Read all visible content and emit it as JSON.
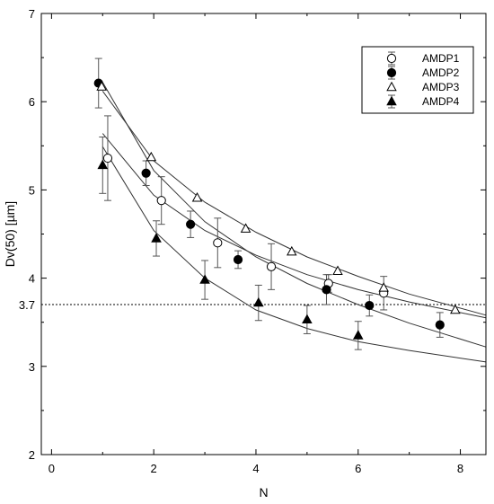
{
  "chart_data": {
    "type": "scatter",
    "title": "",
    "xlabel": "N",
    "ylabel": "Dv(50) [µm]",
    "xlim": [
      -0.2,
      8.5
    ],
    "ylim": [
      2,
      7
    ],
    "x_ticks": [
      "0",
      "2",
      "4",
      "6",
      "8"
    ],
    "y_ticks": [
      "2",
      "3",
      "4",
      "5",
      "6",
      "7"
    ],
    "grid": false,
    "legend_position": "top-right",
    "reference_line": {
      "y": 3.7,
      "label": "3.7",
      "style": "dotted"
    },
    "series": [
      {
        "name": "AMDP1",
        "marker": "open-circle",
        "points": [
          {
            "x": 1.1,
            "y": 5.36,
            "err": 0.48
          },
          {
            "x": 2.15,
            "y": 4.88,
            "err": 0.27
          },
          {
            "x": 3.25,
            "y": 4.4,
            "err": 0.28
          },
          {
            "x": 4.3,
            "y": 4.13,
            "err": 0.26
          },
          {
            "x": 5.42,
            "y": 3.94,
            "err": 0.1
          },
          {
            "x": 6.5,
            "y": 3.83,
            "err": 0.19
          }
        ],
        "fit": [
          {
            "x": 1.0,
            "y": 5.64
          },
          {
            "x": 2.0,
            "y": 4.94
          },
          {
            "x": 3.0,
            "y": 4.54
          },
          {
            "x": 4.0,
            "y": 4.26
          },
          {
            "x": 5.0,
            "y": 4.04
          },
          {
            "x": 6.0,
            "y": 3.87
          },
          {
            "x": 7.0,
            "y": 3.73
          },
          {
            "x": 8.5,
            "y": 3.55
          }
        ]
      },
      {
        "name": "AMDP2",
        "marker": "filled-circle",
        "points": [
          {
            "x": 0.92,
            "y": 6.21,
            "err": 0.28
          },
          {
            "x": 1.85,
            "y": 5.19,
            "err": 0.14
          },
          {
            "x": 2.72,
            "y": 4.61,
            "err": 0.15
          },
          {
            "x": 3.65,
            "y": 4.21,
            "err": 0.1
          },
          {
            "x": 5.38,
            "y": 3.87,
            "err": 0.17
          },
          {
            "x": 6.22,
            "y": 3.69,
            "err": 0.12
          },
          {
            "x": 7.6,
            "y": 3.47,
            "err": 0.14
          }
        ],
        "fit": [
          {
            "x": 1.0,
            "y": 6.22
          },
          {
            "x": 2.0,
            "y": 5.22
          },
          {
            "x": 3.0,
            "y": 4.64
          },
          {
            "x": 4.0,
            "y": 4.24
          },
          {
            "x": 5.0,
            "y": 3.94
          },
          {
            "x": 6.0,
            "y": 3.7
          },
          {
            "x": 7.0,
            "y": 3.49
          },
          {
            "x": 8.5,
            "y": 3.22
          }
        ]
      },
      {
        "name": "AMDP3",
        "marker": "open-triangle",
        "points": [
          {
            "x": 0.98,
            "y": 6.17,
            "err": 0
          },
          {
            "x": 1.95,
            "y": 5.37,
            "err": 0
          },
          {
            "x": 2.85,
            "y": 4.91,
            "err": 0
          },
          {
            "x": 3.8,
            "y": 4.56,
            "err": 0
          },
          {
            "x": 4.7,
            "y": 4.3,
            "err": 0
          },
          {
            "x": 5.6,
            "y": 4.08,
            "err": 0
          },
          {
            "x": 6.5,
            "y": 3.89,
            "err": 0
          },
          {
            "x": 7.9,
            "y": 3.64,
            "err": 0
          }
        ],
        "fit": [
          {
            "x": 1.0,
            "y": 6.12
          },
          {
            "x": 2.0,
            "y": 5.33
          },
          {
            "x": 3.0,
            "y": 4.86
          },
          {
            "x": 4.0,
            "y": 4.52
          },
          {
            "x": 5.0,
            "y": 4.24
          },
          {
            "x": 6.0,
            "y": 4.02
          },
          {
            "x": 7.0,
            "y": 3.82
          },
          {
            "x": 8.5,
            "y": 3.58
          }
        ]
      },
      {
        "name": "AMDP4",
        "marker": "filled-triangle",
        "points": [
          {
            "x": 1.0,
            "y": 5.28,
            "err": 0.32
          },
          {
            "x": 2.05,
            "y": 4.45,
            "err": 0.2
          },
          {
            "x": 3.0,
            "y": 3.98,
            "err": 0.22
          },
          {
            "x": 4.05,
            "y": 3.72,
            "err": 0.2
          },
          {
            "x": 5.0,
            "y": 3.53,
            "err": 0.16
          },
          {
            "x": 6.0,
            "y": 3.35,
            "err": 0.16
          }
        ],
        "fit": [
          {
            "x": 1.0,
            "y": 5.49
          },
          {
            "x": 2.0,
            "y": 4.54
          },
          {
            "x": 3.0,
            "y": 4.0
          },
          {
            "x": 4.0,
            "y": 3.64
          },
          {
            "x": 5.0,
            "y": 3.43
          },
          {
            "x": 6.0,
            "y": 3.28
          },
          {
            "x": 7.0,
            "y": 3.18
          },
          {
            "x": 8.5,
            "y": 3.05
          }
        ]
      }
    ]
  }
}
